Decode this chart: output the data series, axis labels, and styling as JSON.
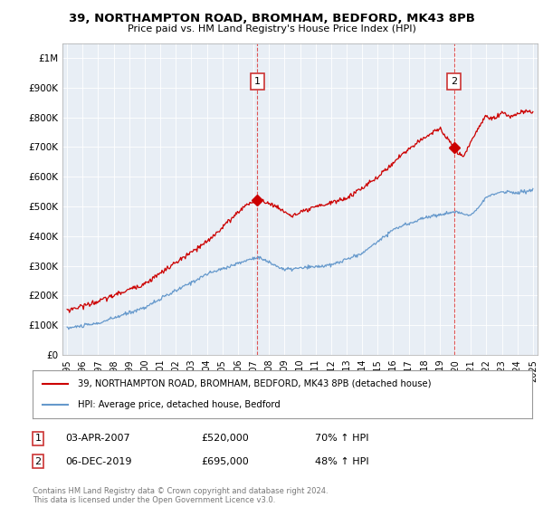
{
  "title": "39, NORTHAMPTON ROAD, BROMHAM, BEDFORD, MK43 8PB",
  "subtitle": "Price paid vs. HM Land Registry's House Price Index (HPI)",
  "ylim": [
    0,
    1050000
  ],
  "yticks": [
    0,
    100000,
    200000,
    300000,
    400000,
    500000,
    600000,
    700000,
    800000,
    900000,
    1000000
  ],
  "ytick_labels": [
    "£0",
    "£100K",
    "£200K",
    "£300K",
    "£400K",
    "£500K",
    "£600K",
    "£700K",
    "£800K",
    "£900K",
    "£1M"
  ],
  "red_color": "#cc0000",
  "blue_color": "#6699cc",
  "plot_bg_color": "#e8eef5",
  "background_color": "#ffffff",
  "grid_color": "#ffffff",
  "t1_x": 2007.25,
  "t2_x": 2019.92,
  "transaction1_date": "03-APR-2007",
  "transaction1_price": "£520,000",
  "transaction1_pct": "70% ↑ HPI",
  "transaction2_date": "06-DEC-2019",
  "transaction2_price": "£695,000",
  "transaction2_pct": "48% ↑ HPI",
  "legend_line1": "39, NORTHAMPTON ROAD, BROMHAM, BEDFORD, MK43 8PB (detached house)",
  "legend_line2": "HPI: Average price, detached house, Bedford",
  "footer": "Contains HM Land Registry data © Crown copyright and database right 2024.\nThis data is licensed under the Open Government Licence v3.0.",
  "xtick_years": [
    1995,
    1996,
    1997,
    1998,
    1999,
    2000,
    2001,
    2002,
    2003,
    2004,
    2005,
    2006,
    2007,
    2008,
    2009,
    2010,
    2011,
    2012,
    2013,
    2014,
    2015,
    2016,
    2017,
    2018,
    2019,
    2020,
    2021,
    2022,
    2023,
    2024,
    2025
  ]
}
